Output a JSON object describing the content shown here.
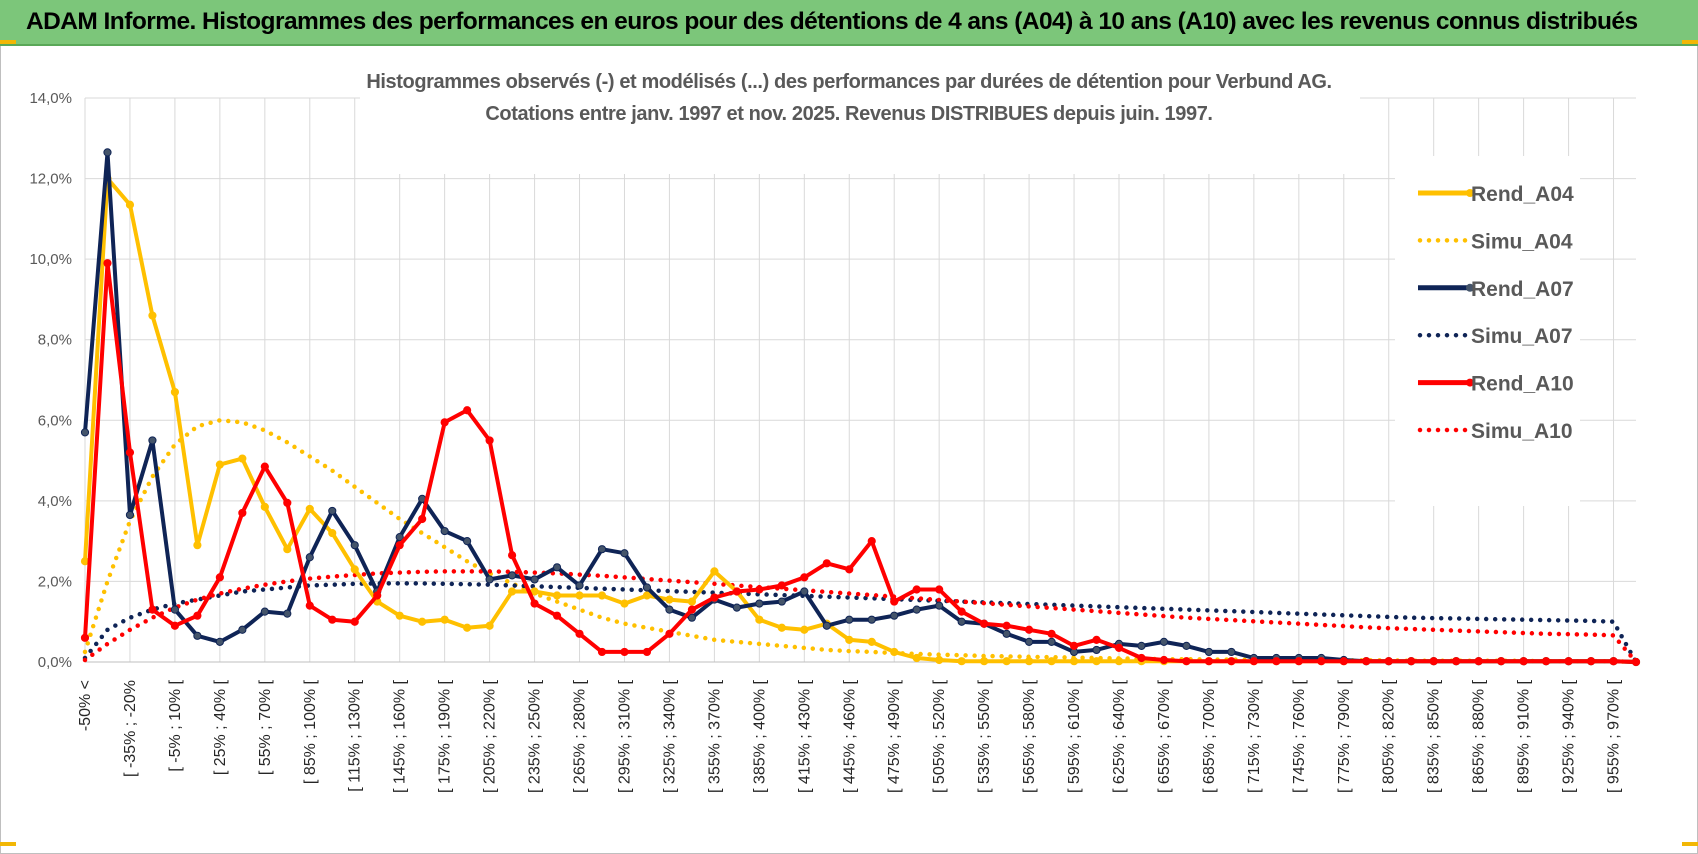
{
  "banner": {
    "title": "ADAM Informe. Histogrammes des performances en euros pour des détentions de 4 ans (A04) à 10 ans (A10) avec les revenus connus distribués"
  },
  "colors": {
    "banner_bg": "#7cc67a",
    "accent_corner": "#f2b705",
    "rend_a04": "#ffc000",
    "rend_a07": "#0f2456",
    "rend_a10": "#ff0000",
    "grid": "#d9d9d9"
  },
  "chart_data": {
    "type": "line",
    "title_line1": "Histogrammes observés (-) et modélisés (...) des performances par durées de détention pour Verbund AG.",
    "title_line2": "Cotations entre janv. 1997 et nov. 2025. Revenus DISTRIBUES depuis juin. 1997.",
    "ylim": [
      0,
      14
    ],
    "yticks": [
      "0,0%",
      "2,0%",
      "4,0%",
      "6,0%",
      "8,0%",
      "10,0%",
      "12,0%",
      "14,0%"
    ],
    "n_points": 70,
    "tick_labels": [
      "-50% <",
      "[ -35% ; -20%",
      "[ -5% ; 10% [",
      "[ 25% ; 40% [",
      "[ 55% ; 70% [",
      "[ 85% ; 100% [",
      "[ 115% ; 130% [",
      "[ 145% ; 160% [",
      "[ 175% ; 190% [",
      "[ 205% ; 220% [",
      "[ 235% ; 250% [",
      "[ 265% ; 280% [",
      "[ 295% ; 310% [",
      "[ 325% ; 340% [",
      "[ 355% ; 370% [",
      "[ 385% ; 400% [",
      "[ 415% ; 430% [",
      "[ 445% ; 460% [",
      "[ 475% ; 490% [",
      "[ 505% ; 520% [",
      "[ 535% ; 550% [",
      "[ 565% ; 580% [",
      "[ 595% ; 610% [",
      "[ 625% ; 640% [",
      "[ 655% ; 670% [",
      "[ 685% ; 700% [",
      "[ 715% ; 730% [",
      "[ 745% ; 760% [",
      "[ 775% ; 790% [",
      "[ 805% ; 820% [",
      "[ 835% ; 850% [",
      "[ 865% ; 880% [",
      "[ 895% ; 910% [",
      "[ 925% ; 940% [",
      "[ 955% ; 970% ["
    ],
    "series": [
      {
        "name": "Rend_A04",
        "style": "solid",
        "color": "#ffc000",
        "values": [
          2.5,
          12.0,
          11.35,
          8.6,
          6.7,
          2.9,
          4.9,
          5.05,
          3.85,
          2.8,
          3.8,
          3.2,
          2.3,
          1.5,
          1.15,
          1.0,
          1.05,
          0.85,
          0.9,
          1.75,
          1.75,
          1.65,
          1.65,
          1.65,
          1.45,
          1.65,
          1.55,
          1.5,
          2.25,
          1.75,
          1.05,
          0.85,
          0.8,
          0.95,
          0.55,
          0.5,
          0.25,
          0.1,
          0.05,
          0.02,
          0.02,
          0.02,
          0.02,
          0.02,
          0.02,
          0.02,
          0.02,
          0.02,
          0.02,
          0.02,
          0.02,
          0.02,
          0.02,
          0.02,
          0.02,
          0.02,
          0.02,
          0.02,
          0.02,
          0.02,
          0.02,
          0.02,
          0.02,
          0.02,
          0.02,
          0.02,
          0.02,
          0.02,
          0.02,
          0.0
        ]
      },
      {
        "name": "Simu_A04",
        "style": "dotted",
        "color": "#ffc000",
        "values": [
          0.25,
          2.0,
          3.5,
          4.6,
          5.4,
          5.85,
          6.0,
          5.95,
          5.75,
          5.45,
          5.1,
          4.75,
          4.35,
          3.95,
          3.55,
          3.2,
          2.85,
          2.5,
          2.2,
          1.95,
          1.7,
          1.5,
          1.3,
          1.1,
          0.95,
          0.85,
          0.75,
          0.65,
          0.55,
          0.5,
          0.45,
          0.4,
          0.35,
          0.3,
          0.27,
          0.25,
          0.22,
          0.2,
          0.18,
          0.17,
          0.15,
          0.14,
          0.13,
          0.12,
          0.11,
          0.1,
          0.09,
          0.08,
          0.07,
          0.07,
          0.06,
          0.06,
          0.05,
          0.05,
          0.05,
          0.04,
          0.04,
          0.04,
          0.04,
          0.03,
          0.03,
          0.03,
          0.03,
          0.03,
          0.03,
          0.02,
          0.02,
          0.02,
          0.02,
          0.0
        ]
      },
      {
        "name": "Rend_A07",
        "style": "solid",
        "color": "#0f2456",
        "values": [
          5.7,
          12.65,
          3.65,
          5.5,
          1.3,
          0.65,
          0.5,
          0.8,
          1.25,
          1.2,
          2.6,
          3.75,
          2.9,
          1.75,
          3.1,
          4.05,
          3.25,
          3.0,
          2.05,
          2.15,
          2.05,
          2.35,
          1.9,
          2.8,
          2.7,
          1.85,
          1.3,
          1.1,
          1.55,
          1.35,
          1.45,
          1.5,
          1.75,
          0.9,
          1.05,
          1.05,
          1.15,
          1.3,
          1.4,
          1.0,
          0.95,
          0.7,
          0.5,
          0.5,
          0.25,
          0.3,
          0.45,
          0.4,
          0.5,
          0.4,
          0.25,
          0.25,
          0.1,
          0.1,
          0.1,
          0.1,
          0.05,
          0.02,
          0.02,
          0.02,
          0.02,
          0.02,
          0.02,
          0.02,
          0.02,
          0.02,
          0.02,
          0.02,
          0.02,
          0.0
        ]
      },
      {
        "name": "Simu_A07",
        "style": "dotted",
        "color": "#0f2456",
        "values": [
          0.1,
          0.8,
          1.1,
          1.3,
          1.45,
          1.55,
          1.65,
          1.75,
          1.8,
          1.85,
          1.9,
          1.92,
          1.94,
          1.95,
          1.95,
          1.95,
          1.94,
          1.93,
          1.92,
          1.9,
          1.88,
          1.86,
          1.84,
          1.82,
          1.8,
          1.78,
          1.76,
          1.74,
          1.72,
          1.7,
          1.68,
          1.66,
          1.64,
          1.62,
          1.6,
          1.58,
          1.56,
          1.54,
          1.52,
          1.5,
          1.48,
          1.46,
          1.44,
          1.42,
          1.4,
          1.38,
          1.36,
          1.34,
          1.32,
          1.3,
          1.28,
          1.26,
          1.24,
          1.22,
          1.2,
          1.18,
          1.16,
          1.14,
          1.12,
          1.1,
          1.09,
          1.08,
          1.07,
          1.06,
          1.05,
          1.04,
          1.03,
          1.02,
          1.0,
          0.0
        ]
      },
      {
        "name": "Rend_A10",
        "style": "solid",
        "color": "#ff0000",
        "values": [
          0.6,
          9.9,
          5.2,
          1.3,
          0.9,
          1.15,
          2.1,
          3.7,
          4.85,
          3.95,
          1.4,
          1.05,
          1.0,
          1.65,
          2.9,
          3.55,
          5.95,
          6.25,
          5.5,
          2.65,
          1.45,
          1.15,
          0.7,
          0.25,
          0.25,
          0.25,
          0.7,
          1.3,
          1.6,
          1.75,
          1.8,
          1.9,
          2.1,
          2.45,
          2.3,
          3.0,
          1.5,
          1.8,
          1.8,
          1.25,
          0.95,
          0.9,
          0.8,
          0.7,
          0.4,
          0.55,
          0.35,
          0.1,
          0.05,
          0.02,
          0.02,
          0.02,
          0.02,
          0.02,
          0.02,
          0.02,
          0.02,
          0.02,
          0.02,
          0.02,
          0.02,
          0.02,
          0.02,
          0.02,
          0.02,
          0.02,
          0.02,
          0.02,
          0.02,
          0.0
        ]
      },
      {
        "name": "Simu_A10",
        "style": "dotted",
        "color": "#ff0000",
        "values": [
          0.05,
          0.45,
          0.8,
          1.1,
          1.35,
          1.55,
          1.7,
          1.82,
          1.92,
          2.0,
          2.07,
          2.12,
          2.16,
          2.2,
          2.22,
          2.24,
          2.25,
          2.25,
          2.25,
          2.24,
          2.22,
          2.2,
          2.17,
          2.14,
          2.1,
          2.06,
          2.02,
          1.98,
          1.94,
          1.9,
          1.86,
          1.82,
          1.78,
          1.74,
          1.7,
          1.66,
          1.62,
          1.58,
          1.54,
          1.5,
          1.46,
          1.42,
          1.38,
          1.34,
          1.3,
          1.26,
          1.22,
          1.18,
          1.14,
          1.1,
          1.07,
          1.04,
          1.01,
          0.98,
          0.95,
          0.92,
          0.89,
          0.86,
          0.84,
          0.82,
          0.8,
          0.78,
          0.76,
          0.74,
          0.72,
          0.7,
          0.69,
          0.68,
          0.66,
          0.0
        ]
      }
    ],
    "legend": [
      "Rend_A04",
      "Simu_A04",
      "Rend_A07",
      "Simu_A07",
      "Rend_A10",
      "Simu_A10"
    ]
  }
}
